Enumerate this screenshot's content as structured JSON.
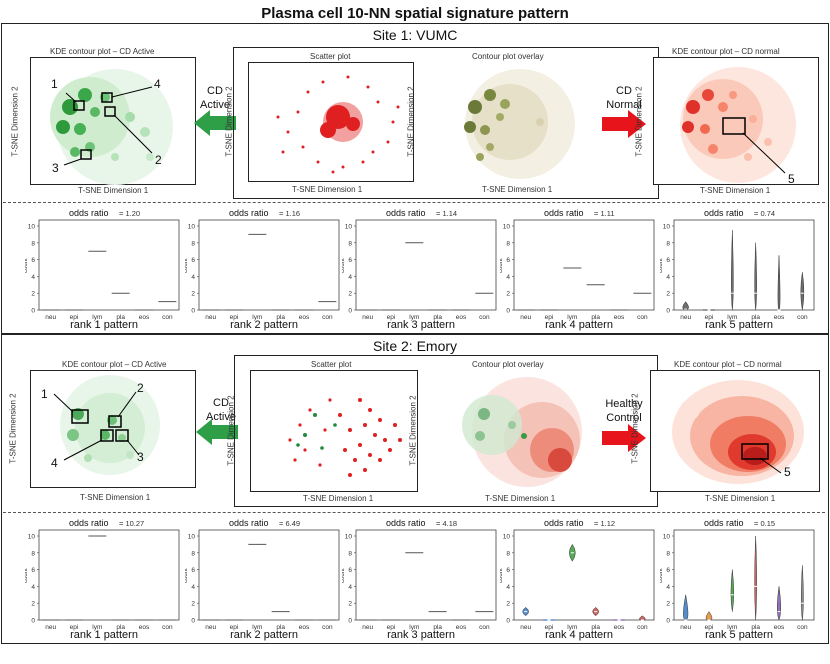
{
  "title": "Plasma cell 10-NN spatial signature pattern",
  "sites": [
    {
      "site_title": "Site 1: VUMC",
      "left_panel": {
        "title": "KDE contour plot – CD Active",
        "xlabel": "T-SNE Dimension 1",
        "ylabel": "T-SNE Dimension 2",
        "callouts": [
          "1",
          "2",
          "3",
          "4"
        ]
      },
      "center_panel": {
        "left_title": "Scatter plot",
        "right_title": "Contour plot overlay",
        "left_xlabel": "T-SNE Dimension 1",
        "right_xlabel": "T-SNE Dimension 1",
        "ylabel": "T-SNE Dimension 2"
      },
      "right_panel": {
        "title": "KDE contour plot – CD normal",
        "xlabel": "T-SNE Dimension 1",
        "ylabel": "T-SNE Dimension 2",
        "callouts": [
          "5"
        ]
      },
      "left_arrow": {
        "line1": "CD",
        "line2": "Active",
        "color": "#2e9e47"
      },
      "right_arrow": {
        "line1": "CD",
        "line2": "Normal",
        "color": "#e8141b"
      },
      "accents": {
        "green": "#1f8a3b",
        "red": "#e02020"
      }
    },
    {
      "site_title": "Site 2: Emory",
      "left_panel": {
        "title": "KDE contour plot – CD Active",
        "xlabel": "T-SNE Dimension 1",
        "ylabel": "T-SNE Dimension 2",
        "callouts": [
          "1",
          "2",
          "3",
          "4"
        ]
      },
      "center_panel": {
        "left_title": "Scatter plot",
        "right_title": "Contour plot overlay",
        "left_xlabel": "T-SNE Dimension 1",
        "right_xlabel": "T-SNE Dimension 1",
        "ylabel": "T-SNE Dimension 2"
      },
      "right_panel": {
        "title": "KDE contour plot – CD normal",
        "xlabel": "T-SNE Dimension 1",
        "ylabel": "T-SNE Dimension 2",
        "callouts": [
          "5"
        ]
      },
      "left_arrow": {
        "line1": "CD",
        "line2": "Active",
        "color": "#2e9e47"
      },
      "right_arrow": {
        "line1": "Healthy",
        "line2": "Control",
        "color": "#e8141b"
      },
      "accents": {
        "green": "#1f8a3b",
        "red": "#e02020"
      }
    }
  ],
  "chart_data": [
    {
      "type": "bar",
      "site": "Site 1: VUMC",
      "rank_label": "rank 1 pattern",
      "odds_label": "odds ratio",
      "odds_value": "= 1.20",
      "ylabel": "count",
      "ylim": [
        0,
        10
      ],
      "yticks": [
        0,
        2,
        4,
        6,
        8,
        10
      ],
      "categories": [
        "neu",
        "epi",
        "lym",
        "pla",
        "eos",
        "con"
      ],
      "values": [
        0,
        0,
        7,
        2,
        0,
        1
      ],
      "style": "line"
    },
    {
      "type": "bar",
      "site": "Site 1: VUMC",
      "rank_label": "rank 2 pattern",
      "odds_label": "odds ratio",
      "odds_value": "= 1.16",
      "ylabel": "count",
      "ylim": [
        0,
        10
      ],
      "yticks": [
        0,
        2,
        4,
        6,
        8,
        10
      ],
      "categories": [
        "neu",
        "epi",
        "lym",
        "pla",
        "eos",
        "con"
      ],
      "values": [
        0,
        0,
        9,
        0,
        0,
        1
      ],
      "style": "line"
    },
    {
      "type": "bar",
      "site": "Site 1: VUMC",
      "rank_label": "rank 3 pattern",
      "odds_label": "odds ratio",
      "odds_value": "= 1.14",
      "ylabel": "count",
      "ylim": [
        0,
        10
      ],
      "yticks": [
        0,
        2,
        4,
        6,
        8,
        10
      ],
      "categories": [
        "neu",
        "epi",
        "lym",
        "pla",
        "eos",
        "con"
      ],
      "values": [
        0,
        0,
        8,
        0,
        0,
        2
      ],
      "style": "line"
    },
    {
      "type": "bar",
      "site": "Site 1: VUMC",
      "rank_label": "rank 4 pattern",
      "odds_label": "odds ratio",
      "odds_value": "= 1.11",
      "ylabel": "count",
      "ylim": [
        0,
        10
      ],
      "yticks": [
        0,
        2,
        4,
        6,
        8,
        10
      ],
      "categories": [
        "neu",
        "epi",
        "lym",
        "pla",
        "eos",
        "con"
      ],
      "values": [
        0,
        0,
        5,
        3,
        0,
        2
      ],
      "style": "line"
    },
    {
      "type": "violin",
      "site": "Site 1: VUMC",
      "rank_label": "rank 5 pattern",
      "odds_label": "odds ratio",
      "odds_value": "= 0.74",
      "ylabel": "count",
      "ylim": [
        0,
        10
      ],
      "yticks": [
        0,
        2,
        4,
        6,
        8,
        10
      ],
      "categories": [
        "neu",
        "epi",
        "lym",
        "pla",
        "eos",
        "con"
      ],
      "medians": [
        0.1,
        0,
        2,
        2,
        0,
        2
      ],
      "ranges": [
        [
          0,
          1
        ],
        [
          0,
          0
        ],
        [
          0,
          9.5
        ],
        [
          0,
          8
        ],
        [
          0,
          6.5
        ],
        [
          0,
          4.5
        ]
      ],
      "colors": [
        "#555",
        "#555",
        "#555",
        "#555",
        "#555",
        "#555"
      ],
      "style": "violin"
    },
    {
      "type": "bar",
      "site": "Site 2: Emory",
      "rank_label": "rank 1 pattern",
      "odds_label": "odds ratio",
      "odds_value": "= 10.27",
      "ylabel": "count",
      "ylim": [
        0,
        10
      ],
      "yticks": [
        0,
        2,
        4,
        6,
        8,
        10
      ],
      "categories": [
        "neu",
        "epi",
        "lym",
        "pla",
        "eos",
        "con"
      ],
      "values": [
        0,
        0,
        10,
        0,
        0,
        0
      ],
      "style": "line"
    },
    {
      "type": "bar",
      "site": "Site 2: Emory",
      "rank_label": "rank 2 pattern",
      "odds_label": "odds ratio",
      "odds_value": "= 6.49",
      "ylabel": "count",
      "ylim": [
        0,
        10
      ],
      "yticks": [
        0,
        2,
        4,
        6,
        8,
        10
      ],
      "categories": [
        "neu",
        "epi",
        "lym",
        "pla",
        "eos",
        "con"
      ],
      "values": [
        0,
        0,
        9,
        1,
        0,
        0
      ],
      "style": "line"
    },
    {
      "type": "bar",
      "site": "Site 2: Emory",
      "rank_label": "rank 3 pattern",
      "odds_label": "odds ratio",
      "odds_value": "= 4.18",
      "ylabel": "count",
      "ylim": [
        0,
        10
      ],
      "yticks": [
        0,
        2,
        4,
        6,
        8,
        10
      ],
      "categories": [
        "neu",
        "epi",
        "lym",
        "pla",
        "eos",
        "con"
      ],
      "values": [
        0,
        0,
        8,
        1,
        0,
        1
      ],
      "style": "line"
    },
    {
      "type": "violin",
      "site": "Site 2: Emory",
      "rank_label": "rank 4 pattern",
      "odds_label": "odds ratio",
      "odds_value": "= 1.12",
      "ylabel": "count",
      "ylim": [
        0,
        10
      ],
      "yticks": [
        0,
        2,
        4,
        6,
        8,
        10
      ],
      "categories": [
        "neu",
        "epi",
        "lym",
        "pla",
        "eos",
        "con"
      ],
      "medians": [
        1,
        0,
        8,
        1,
        0,
        0
      ],
      "ranges": [
        [
          0.5,
          1.5
        ],
        [
          0,
          0
        ],
        [
          7,
          9
        ],
        [
          0.5,
          1.5
        ],
        [
          0,
          0
        ],
        [
          0,
          0.5
        ]
      ],
      "colors": [
        "#3a78c2",
        "#3a78c2",
        "#3c9a3c",
        "#c84a4a",
        "#7a5aa8",
        "#c84a4a"
      ],
      "style": "violin"
    },
    {
      "type": "violin",
      "site": "Site 2: Emory",
      "rank_label": "rank 5 pattern",
      "odds_label": "odds ratio",
      "odds_value": "= 0.15",
      "ylabel": "count",
      "ylim": [
        0,
        10
      ],
      "yticks": [
        0,
        2,
        4,
        6,
        8,
        10
      ],
      "categories": [
        "neu",
        "epi",
        "lym",
        "pla",
        "eos",
        "con"
      ],
      "medians": [
        0,
        0,
        3,
        4,
        1,
        2
      ],
      "ranges": [
        [
          0,
          3
        ],
        [
          0,
          1
        ],
        [
          1,
          6
        ],
        [
          0,
          10
        ],
        [
          0,
          4
        ],
        [
          0,
          6.5
        ]
      ],
      "colors": [
        "#3a78c2",
        "#e08a2a",
        "#3c9a3c",
        "#c84a4a",
        "#7a5aa8",
        "#7a7a7a"
      ],
      "style": "violin"
    }
  ]
}
